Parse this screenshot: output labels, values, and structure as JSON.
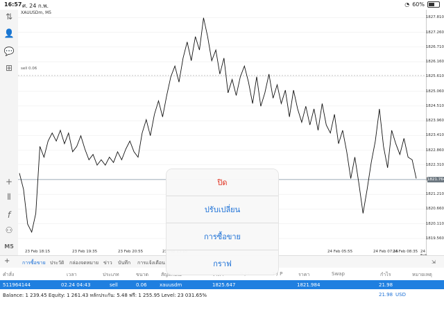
{
  "status": {
    "time": "16:57",
    "date": "ศ. 24 ก.พ.",
    "battery": "60%"
  },
  "chart": {
    "symbol": "XAUUSDm, M5",
    "sell_line_label": "sell 0.06",
    "current_price": "1821.764",
    "yticks": [
      "1827.810",
      "1827.260",
      "1826.710",
      "1826.160",
      "1825.610",
      "1825.060",
      "1824.510",
      "1823.960",
      "1823.410",
      "1822.860",
      "1822.310",
      "1821.760",
      "1821.210",
      "1820.660",
      "1820.110",
      "1819.560"
    ],
    "xticks": [
      "23 Feb 18:15",
      "23 Feb 19:35",
      "23 Feb 20:55",
      "23 Feb 23:15",
      "24 Feb 04:35",
      "24 Feb 05:55",
      "24 Feb 07:15",
      "24 Feb 08:35",
      "24 Feb 09:55"
    ]
  },
  "chart_data": {
    "type": "line",
    "title": "XAUUSDm, M5",
    "ylim": [
      1819.3,
      1828.0
    ],
    "x_labels": [
      "23 Feb 18:15",
      "23 Feb 19:35",
      "23 Feb 20:55",
      "23 Feb 23:15",
      "24 Feb 04:35",
      "24 Feb 05:55",
      "24 Feb 07:15",
      "24 Feb 08:35",
      "24 Feb 09:55"
    ],
    "values": [
      1822.0,
      1821.4,
      1820.1,
      1819.8,
      1820.5,
      1823.0,
      1822.6,
      1823.2,
      1823.5,
      1823.2,
      1823.6,
      1823.1,
      1823.5,
      1822.8,
      1823.0,
      1823.4,
      1822.9,
      1822.5,
      1822.7,
      1822.3,
      1822.5,
      1822.3,
      1822.6,
      1822.4,
      1822.8,
      1822.5,
      1822.9,
      1823.2,
      1822.8,
      1822.6,
      1823.5,
      1824.0,
      1823.4,
      1824.2,
      1824.7,
      1824.1,
      1824.9,
      1825.6,
      1826.0,
      1825.4,
      1826.3,
      1826.9,
      1826.2,
      1827.1,
      1826.6,
      1827.8,
      1827.1,
      1826.2,
      1826.6,
      1825.7,
      1826.3,
      1825.0,
      1825.5,
      1824.9,
      1825.6,
      1826.0,
      1825.4,
      1824.6,
      1825.6,
      1824.5,
      1825.0,
      1825.7,
      1824.8,
      1825.3,
      1824.6,
      1825.1,
      1824.1,
      1825.1,
      1824.4,
      1823.9,
      1824.5,
      1823.8,
      1824.4,
      1823.6,
      1824.6,
      1823.8,
      1823.5,
      1824.2,
      1823.1,
      1823.6,
      1822.8,
      1821.8,
      1822.6,
      1821.6,
      1820.5,
      1821.4,
      1822.4,
      1823.2,
      1824.4,
      1823.0,
      1822.2,
      1823.6,
      1823.1,
      1822.7,
      1823.3,
      1822.6,
      1822.5,
      1821.8
    ],
    "reference_lines": [
      {
        "label": "sell 0.06",
        "y": 1825.647
      },
      {
        "label": "bid",
        "y": 1821.764
      }
    ]
  },
  "tabs": [
    "การซื้อขาย",
    "ประวัติ",
    "กล่องจดหมาย",
    "ข่าว",
    "บันทึก",
    "การแจ้งเตือน"
  ],
  "columns": [
    "คำสั่ง",
    "เวลา",
    "ประเภท",
    "ขนาด",
    "สัญลักษณ์",
    "ราคา",
    "S / L",
    "T / P",
    "ราคา",
    "Swap",
    "กำไร",
    "หมายเหตุ"
  ],
  "trade": {
    "order": "511964144",
    "time": "02.24 04:43",
    "type": "sell",
    "volume": "0.06",
    "symbol": "xauusdm",
    "open_price": "1825.647",
    "price": "1821.984",
    "profit": "21.98"
  },
  "balance": {
    "text": "Balance: 1 239.45 Equity: 1 261.43 หลักประกัน: 5.48 ฟรี: 1 255.95 Level: 23 031.65%",
    "total": "21.98",
    "currency": "USD"
  },
  "menu": {
    "close": "ปิด",
    "modify": "ปรับเปลี่ยน",
    "trade": "การซื้อขาย",
    "chart": "กราฟ"
  }
}
